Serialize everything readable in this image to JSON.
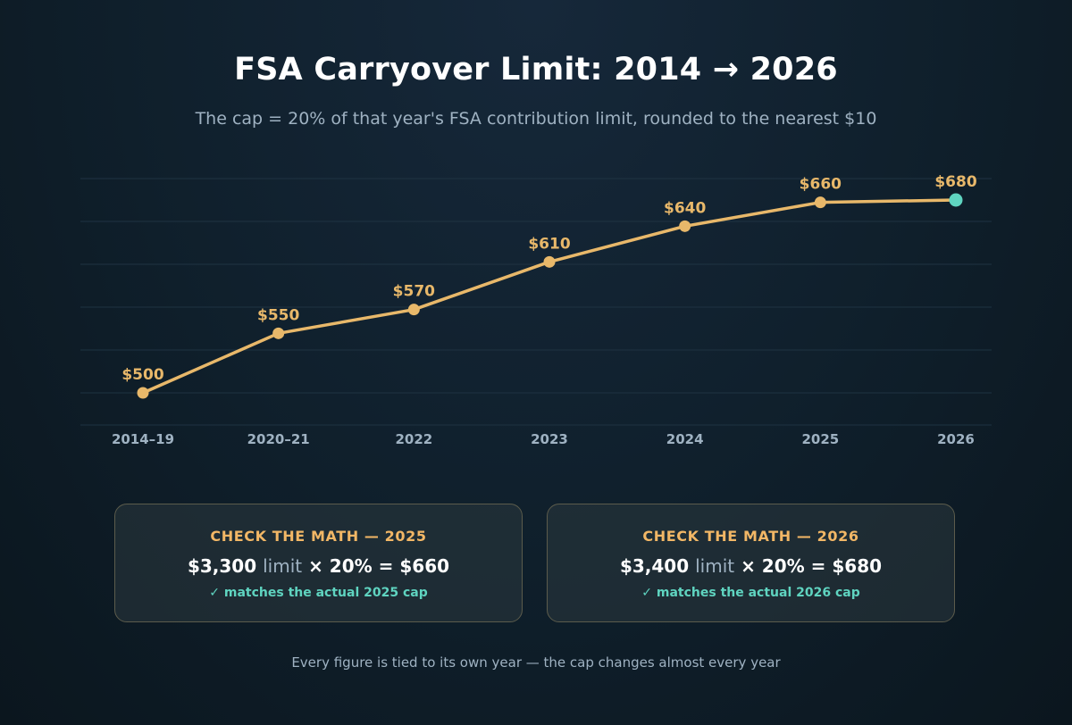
{
  "title": "FSA Carryover Limit: 2014 → 2026",
  "subtitle": "The cap = 20% of that year's FSA contribution limit, rounded to the nearest $10",
  "colors": {
    "line": "#e8b86a",
    "highlight": "#5fd4c0",
    "accent_text": "#f2b766",
    "muted_text": "#9fb2c2"
  },
  "chart_data": {
    "type": "line",
    "categories": [
      "2014–19",
      "2020–21",
      "2022",
      "2023",
      "2024",
      "2025",
      "2026"
    ],
    "values": [
      500,
      550,
      570,
      610,
      640,
      660,
      680
    ],
    "data_labels": [
      "$500",
      "$550",
      "$570",
      "$610",
      "$640",
      "$660",
      "$680"
    ],
    "highlighted_point": "2026",
    "grid": true
  },
  "cards": [
    {
      "title": "CHECK THE MATH — 2025",
      "amount": "$3,300",
      "limit_word": "limit",
      "operator": "× 20% =",
      "result": "$660",
      "check": "✓ matches the actual 2025 cap"
    },
    {
      "title": "CHECK THE MATH — 2026",
      "amount": "$3,400",
      "limit_word": "limit",
      "operator": "× 20% =",
      "result": "$680",
      "check": "✓ matches the actual 2026 cap"
    }
  ],
  "footer": "Every figure is tied to its own year — the cap changes almost every year"
}
